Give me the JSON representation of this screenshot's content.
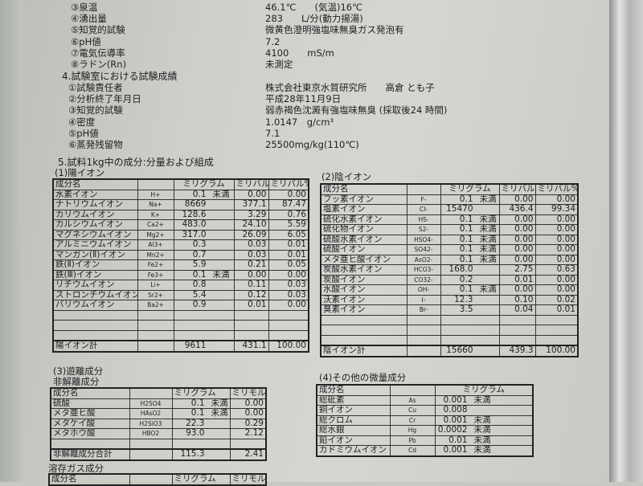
{
  "section3_items": [
    {
      "label": "③泉温",
      "value": "46.1℃　　(気温)16℃"
    },
    {
      "label": "④湧出量",
      "value": "283　　L/分(動力揚湯)"
    },
    {
      "label": "⑤知覚的試験",
      "value": "微黄色澄明強塩味無臭ガス発泡有"
    },
    {
      "label": "⑥pH値",
      "value": "7.2"
    },
    {
      "label": "⑦電気伝導率",
      "value": "4100　　mS/m"
    },
    {
      "label": "⑧ラドン(Rn)",
      "value": "未測定"
    }
  ],
  "section4": {
    "title": "4.試験室における試験成績",
    "items": [
      {
        "label": "①試験責任者",
        "value": "株式会社東京水質研究所　　高倉 とも子"
      },
      {
        "label": "②分析終了年月日",
        "value": "平成28年11月9日"
      },
      {
        "label": "③知覚的試験",
        "value": "弱赤褐色沈澱有強塩味無臭 (採取後24 時間)"
      },
      {
        "label": "④密度",
        "value": "1.0147　g/cm³"
      },
      {
        "label": "⑤pH値",
        "value": "7.1"
      },
      {
        "label": "⑥蒸発残留物",
        "value": "25500mg/kg(110℃)"
      }
    ]
  },
  "section5_title": "5.試料1kg中の成分:分量および組成",
  "cations": {
    "title": "(1)陽イオン",
    "headers": [
      "成分名",
      "",
      "ミリグラム",
      "ミリバル",
      "ミリバル%"
    ],
    "rows": [
      [
        "水素イオン",
        "H+",
        "0.1",
        "未満",
        "0.00",
        "0.00"
      ],
      [
        "ナトリウムイオン",
        "Na+",
        "8669",
        "",
        "377.1",
        "87.47"
      ],
      [
        "カリウムイオン",
        "K+",
        "128.6",
        "",
        "3.29",
        "0.76"
      ],
      [
        "カルシウムイオン",
        "Ca2+",
        "483.0",
        "",
        "24.10",
        "5.59"
      ],
      [
        "マグネシウムイオン",
        "Mg2+",
        "317.0",
        "",
        "26.09",
        "6.05"
      ],
      [
        "アルミニウムイオン",
        "Al3+",
        "0.3",
        "",
        "0.03",
        "0.01"
      ],
      [
        "マンガン(Ⅱ)イオン",
        "Mn2+",
        "0.7",
        "",
        "0.03",
        "0.01"
      ],
      [
        "鉄(Ⅱ)イオン",
        "Fe2+",
        "5.9",
        "",
        "0.21",
        "0.05"
      ],
      [
        "鉄(Ⅲ)イオン",
        "Fe3+",
        "0.1",
        "未満",
        "0.00",
        "0.00"
      ],
      [
        "リチウムイオン",
        "Li+",
        "0.8",
        "",
        "0.11",
        "0.03"
      ],
      [
        "ストロンチウムイオン",
        "Sr2+",
        "5.4",
        "",
        "0.12",
        "0.03"
      ],
      [
        "バリウムイオン",
        "Ba2+",
        "0.9",
        "",
        "0.01",
        "0.00"
      ]
    ],
    "total": [
      "陽イオン計",
      "",
      "9611",
      "",
      "431.1",
      "100.00"
    ]
  },
  "anions": {
    "title": "(2)陰イオン",
    "headers": [
      "成分名",
      "",
      "ミリグラム",
      "ミリバル",
      "ミリバル%"
    ],
    "rows": [
      [
        "フッ素イオン",
        "F-",
        "0.1",
        "未満",
        "0.00",
        "0.00"
      ],
      [
        "塩素イオン",
        "Cl-",
        "15470",
        "",
        "436.4",
        "99.34"
      ],
      [
        "硫化水素イオン",
        "HS-",
        "0.1",
        "未満",
        "0.00",
        "0.00"
      ],
      [
        "硫化物イオン",
        "S2-",
        "0.1",
        "未満",
        "0.00",
        "0.00"
      ],
      [
        "硫酸水素イオン",
        "HSO4-",
        "0.1",
        "未満",
        "0.00",
        "0.00"
      ],
      [
        "硫酸イオン",
        "SO42-",
        "0.1",
        "未満",
        "0.00",
        "0.00"
      ],
      [
        "メタ亜ヒ酸イオン",
        "AsO2-",
        "0.1",
        "未満",
        "0.00",
        "0.00"
      ],
      [
        "炭酸水素イオン",
        "HCO3-",
        "168.0",
        "",
        "2.75",
        "0.63"
      ],
      [
        "炭酸イオン",
        "CO32-",
        "0.2",
        "",
        "0.01",
        "0.00"
      ],
      [
        "水酸イオン",
        "OH-",
        "0.1",
        "未満",
        "0.00",
        "0.00"
      ],
      [
        "沃素イオン",
        "I-",
        "12.3",
        "",
        "0.10",
        "0.02"
      ],
      [
        "臭素イオン",
        "Br-",
        "3.5",
        "",
        "0.04",
        "0.01"
      ]
    ],
    "total": [
      "陰イオン計",
      "",
      "15660",
      "",
      "439.3",
      "100.00"
    ]
  },
  "free": {
    "title": "(3)遊離成分",
    "subtitle": "非解離成分",
    "headers": [
      "成分名",
      "",
      "ミリグラム",
      "ミリモル"
    ],
    "rows": [
      [
        "硫酸",
        "H2SO4",
        "0.1",
        "未満",
        "0.00"
      ],
      [
        "メタ亜ヒ酸",
        "HAsO2",
        "0.1",
        "未満",
        "0.00"
      ],
      [
        "メタケイ酸",
        "H2SiO3",
        "22.3",
        "",
        "0.29"
      ],
      [
        "メタホウ酸",
        "HBO2",
        "93.0",
        "",
        "2.12"
      ]
    ],
    "total": [
      "非解離成分合計",
      "",
      "115.3",
      "",
      "2.41"
    ],
    "gas_title": "溶存ガス成分",
    "gas_headers": [
      "成分名",
      "",
      "ミリグラム",
      "ミリモル"
    ]
  },
  "trace": {
    "title": "(4)その他の微量成分",
    "headers": [
      "成分名",
      "",
      "ミリグラム"
    ],
    "rows": [
      [
        "総砒素",
        "As",
        "0.001",
        "未満"
      ],
      [
        "銅イオン",
        "Cu",
        "0.008",
        ""
      ],
      [
        "総クロム",
        "Cr",
        "0.001",
        "未満"
      ],
      [
        "総水銀",
        "Hg",
        "0.0002",
        "未満"
      ],
      [
        "鉛イオン",
        "Pb",
        "0.01",
        "未満"
      ],
      [
        "カドミウムイオン",
        "Cd",
        "0.001",
        "未満"
      ]
    ]
  }
}
